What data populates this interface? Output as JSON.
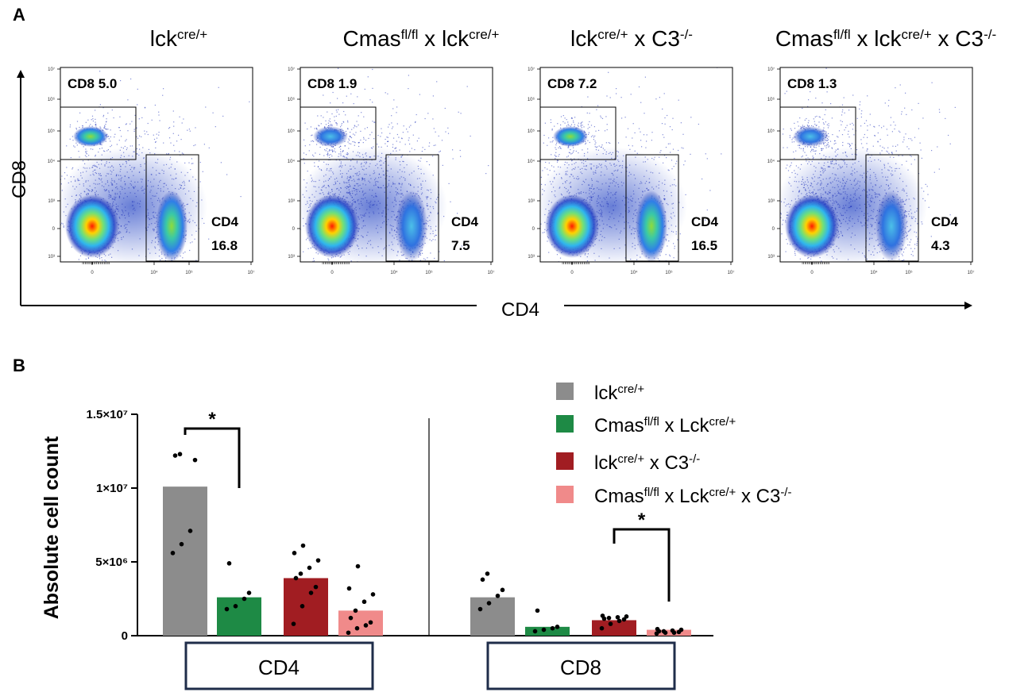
{
  "panel_a": {
    "letter": "A",
    "x_axis_label": "CD4",
    "y_axis_label": "CD8",
    "tick_labels_x": [
      "0",
      "10⁴",
      "10⁵",
      "10⁷"
    ],
    "tick_labels_y": [
      "10⁷",
      "10⁶",
      "10⁵",
      "10⁴",
      "10³",
      "0",
      "10³"
    ],
    "plots": [
      {
        "title": {
          "base": "lck",
          "sup1": "cre/+",
          "mid": "",
          "sup2": "",
          "tail": "",
          "sup3": ""
        },
        "cd8": "CD8 5.0",
        "cd4_name": "CD4",
        "cd4_value": "16.8"
      },
      {
        "title": {
          "base": "Cmas",
          "sup1": "fl/fl",
          "mid": " x lck",
          "sup2": "cre/+",
          "tail": "",
          "sup3": ""
        },
        "cd8": "CD8 1.9",
        "cd4_name": "CD4",
        "cd4_value": "7.5"
      },
      {
        "title": {
          "base": "lck",
          "sup1": "cre/+",
          "mid": " x C3",
          "sup2": "-/-",
          "tail": "",
          "sup3": ""
        },
        "cd8": "CD8 7.2",
        "cd4_name": "CD4",
        "cd4_value": "16.5"
      },
      {
        "title": {
          "base": "Cmas",
          "sup1": "fl/fl",
          "mid": " x lck",
          "sup2": "cre/+",
          "tail": " x C3",
          "sup3": "-/-"
        },
        "cd8": "CD8 1.3",
        "cd4_name": "CD4",
        "cd4_value": "4.3"
      }
    ]
  },
  "chart_data": {
    "type": "bar",
    "panel_letter": "B",
    "title": "",
    "xlabel": "",
    "ylabel": "Absolute cell count",
    "ylim": [
      0,
      15000000
    ],
    "y_ticks": [
      {
        "value": 0,
        "label": "0"
      },
      {
        "value": 5000000,
        "label": "5×10⁶"
      },
      {
        "value": 10000000,
        "label": "1×10⁷"
      },
      {
        "value": 15000000,
        "label": "1.5×10⁷"
      }
    ],
    "groups": [
      "CD4",
      "CD8"
    ],
    "series": [
      {
        "name": "lck cre/+",
        "color": "#8c8c8c",
        "values": [
          10100000,
          2600000
        ],
        "points": [
          [
            5600000,
            6200000,
            7100000,
            11900000,
            12200000,
            12300000
          ],
          [
            1800000,
            2200000,
            2700000,
            3100000,
            3800000,
            4200000
          ]
        ]
      },
      {
        "name": "Cmas fl/fl x Lck cre/+",
        "color": "#1e8a45",
        "values": [
          2600000,
          600000
        ],
        "points": [
          [
            1800000,
            2000000,
            2500000,
            2900000,
            4900000
          ],
          [
            300000,
            400000,
            500000,
            600000,
            1700000
          ]
        ]
      },
      {
        "name": "lck cre/+ x C3-/-",
        "color": "#a11d22",
        "values": [
          3900000,
          1050000
        ],
        "points": [
          [
            800000,
            2000000,
            2900000,
            3300000,
            3900000,
            4200000,
            4600000,
            5100000,
            5600000,
            6100000
          ],
          [
            500000,
            800000,
            1000000,
            1100000,
            1150000,
            1200000,
            1250000,
            1300000,
            1350000
          ]
        ]
      },
      {
        "name": "Cmas fl/fl x Lck cre/+ x C3-/-",
        "color": "#f08a8a",
        "values": [
          1700000,
          400000
        ],
        "points": [
          [
            200000,
            500000,
            700000,
            900000,
            1200000,
            1700000,
            2300000,
            2800000,
            3200000,
            4700000
          ],
          [
            150000,
            200000,
            200000,
            250000,
            300000,
            300000,
            350000,
            400000,
            450000
          ]
        ]
      }
    ],
    "legend": [
      {
        "base": "lck",
        "sup1": "cre/+",
        "mid": "",
        "sup2": "",
        "tail": "",
        "sup3": "",
        "color": "#8c8c8c"
      },
      {
        "base": "Cmas",
        "sup1": "fl/fl",
        "mid": " x Lck",
        "sup2": "cre/+",
        "tail": "",
        "sup3": "",
        "color": "#1e8a45"
      },
      {
        "base": "lck",
        "sup1": "cre/+",
        "mid": " x C3",
        "sup2": "-/-",
        "tail": "",
        "sup3": "",
        "color": "#a11d22"
      },
      {
        "base": "Cmas",
        "sup1": "fl/fl",
        "mid": " x Lck",
        "sup2": "cre/+",
        "tail": " x C3",
        "sup3": "-/-",
        "color": "#f08a8a"
      }
    ],
    "legend_position": "top-right",
    "significance": [
      {
        "group": "CD4",
        "from_series": 0,
        "to_series": 1,
        "label": "*"
      },
      {
        "group": "CD8",
        "from_series": 2,
        "to_series": 3,
        "label": "*"
      }
    ]
  }
}
